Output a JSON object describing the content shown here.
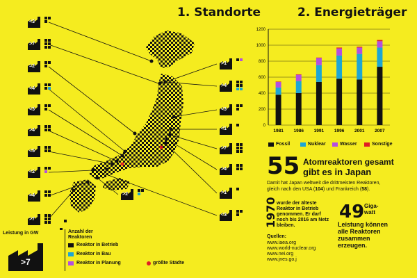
{
  "sections": {
    "standorte": "1. Standorte",
    "energietraeger": "2. Energieträger"
  },
  "plants_left": [
    {
      "label": "<3",
      "blk": 3,
      "blu": 0,
      "pur": 0
    },
    {
      "label": ">7",
      "blk": 6,
      "blu": 0,
      "pur": 0
    },
    {
      "label": "=2",
      "blk": 3,
      "blu": 0,
      "pur": 0
    },
    {
      "label": "<4",
      "blk": 3,
      "blu": 1,
      "pur": 0
    },
    {
      "label": "<3",
      "blk": 3,
      "blu": 0,
      "pur": 0
    },
    {
      "label": ">4",
      "blk": 4,
      "blu": 0,
      "pur": 0
    },
    {
      "label": "<5",
      "blk": 4,
      "blu": 0,
      "pur": 0
    },
    {
      "label": "<2",
      "blk": 2,
      "blu": 0,
      "pur": 1
    },
    {
      "label": "=4",
      "blk": 4,
      "blu": 0,
      "pur": 0
    },
    {
      "label": ">7",
      "blk": 6,
      "blu": 0,
      "pur": 0
    }
  ],
  "plants_right": [
    {
      "label": ">1",
      "blk": 1,
      "blu": 0,
      "pur": 1
    },
    {
      "label": ">4",
      "blk": 4,
      "blu": 2,
      "pur": 0
    },
    {
      "label": "<3",
      "blk": 3,
      "blu": 0,
      "pur": 0
    },
    {
      "label": "<1",
      "blk": 1,
      "blu": 0,
      "pur": 0
    },
    {
      "label": ">7",
      "blk": 6,
      "blu": 0,
      "pur": 0
    },
    {
      "label": ">4",
      "blk": 4,
      "blu": 0,
      "pur": 0
    },
    {
      "label": ">1",
      "blk": 1,
      "blu": 0,
      "pur": 0
    },
    {
      "label": "<3",
      "blk": 3,
      "blu": 0,
      "pur": 0
    }
  ],
  "plant_map_bottom": {
    "label": ">2",
    "blk": 2,
    "blu": 1,
    "pur": 0
  },
  "legend": {
    "leistung": "Leistung in GW",
    "big_label": ">7",
    "anzahl": "Anzahl der Reaktoren",
    "betrieb": "Reaktor in Betrieb",
    "bau": "Reaktor in Bau",
    "planung": "Reaktor in Planung",
    "staedte": "größte Städte"
  },
  "chart_data": {
    "type": "bar",
    "stacked": true,
    "categories": [
      "1981",
      "1986",
      "1991",
      "1996",
      "2001",
      "2007"
    ],
    "ylim": [
      0,
      1200
    ],
    "yticks": [
      "0",
      "200",
      "400",
      "600",
      "800",
      "1000",
      "1200"
    ],
    "series": [
      {
        "name": "Fossil",
        "color": "#111111",
        "values": [
          380,
          400,
          540,
          580,
          570,
          730
        ]
      },
      {
        "name": "Nuklear",
        "color": "#1da6d4",
        "values": [
          90,
          150,
          210,
          290,
          320,
          240
        ]
      },
      {
        "name": "Wasser",
        "color": "#b44fe0",
        "values": [
          70,
          80,
          90,
          90,
          80,
          80
        ]
      },
      {
        "name": "Sonstige",
        "color": "#e01e24",
        "values": [
          5,
          5,
          5,
          10,
          10,
          15
        ]
      }
    ]
  },
  "stat55": {
    "number": "55",
    "line1": "Atomreaktoren gesamt",
    "line2": "gibt es in Japan",
    "desc1": "Damit hat Japan weltweit die drittmeisten Reaktoren,",
    "desc2_pre": "gleich nach den USA (",
    "usa": "104",
    "desc2_mid": ") und Frankreich (",
    "fr": "58",
    "desc2_post": ")."
  },
  "stat1970": {
    "year": "1970",
    "text": "wurde der älteste Reaktor in Betrieb genommen. Er darf noch bis 2016 am Netz bleiben."
  },
  "stat49": {
    "number": "49",
    "unit": "Giga-watt",
    "text": "Leistung können alle Reaktoren zusammen erzeugen."
  },
  "sources": {
    "title": "Quellen:",
    "items": [
      "www.iaea.org",
      "www.world-nuclear.org",
      "www.nei.org",
      "www.jnes.go.j"
    ]
  }
}
